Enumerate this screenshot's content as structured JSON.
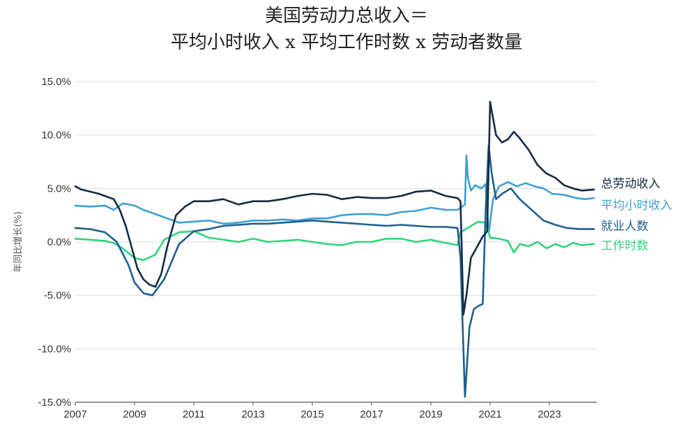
{
  "chart_data": {
    "type": "line",
    "title_line1": "美国劳动力总收入＝",
    "title_line2": "平均小时收入 x 平均工作时数 x 劳动者数量",
    "ylabel": "年同比增长(%)",
    "xlabel": "",
    "ylim": [
      -15,
      15
    ],
    "xlim": [
      2007,
      2024.6
    ],
    "y_ticks": [
      15,
      10,
      5,
      0,
      -5,
      -10,
      -15
    ],
    "y_tick_labels": [
      "15.0%",
      "10.0%",
      "5.0%",
      "0.0%",
      "-5.0%",
      "-10.0%",
      "-15.0%"
    ],
    "x_ticks": [
      2007,
      2009,
      2011,
      2013,
      2015,
      2017,
      2019,
      2021,
      2023
    ],
    "x_tick_labels": [
      "2007",
      "2009",
      "2011",
      "2013",
      "2015",
      "2017",
      "2019",
      "2021",
      "2023"
    ],
    "grid": true,
    "series": [
      {
        "name": "平均小时收入",
        "color": "#3f9fd1",
        "x": [
          2007,
          2007.5,
          2008,
          2008.3,
          2008.6,
          2009,
          2009.3,
          2009.7,
          2010,
          2010.5,
          2011,
          2011.5,
          2012,
          2012.5,
          2013,
          2013.5,
          2014,
          2014.5,
          2015,
          2015.5,
          2016,
          2016.5,
          2017,
          2017.5,
          2018,
          2018.5,
          2019,
          2019.5,
          2019.9,
          2020.15,
          2020.2,
          2020.25,
          2020.35,
          2020.5,
          2020.7,
          2020.85,
          2020.95,
          2021.1,
          2021.3,
          2021.6,
          2021.9,
          2022.2,
          2022.5,
          2022.8,
          2023.1,
          2023.5,
          2023.9,
          2024.2,
          2024.5
        ],
        "y": [
          3.4,
          3.3,
          3.4,
          3.0,
          3.6,
          3.4,
          3.0,
          2.6,
          2.3,
          1.8,
          1.9,
          2.0,
          1.7,
          1.8,
          2.0,
          2.0,
          2.1,
          2.0,
          2.2,
          2.2,
          2.5,
          2.6,
          2.6,
          2.5,
          2.8,
          2.9,
          3.2,
          3.0,
          3.0,
          3.5,
          8.1,
          6.0,
          4.8,
          5.3,
          5.0,
          5.4,
          0.8,
          4.0,
          5.2,
          5.6,
          5.2,
          5.5,
          5.2,
          5.0,
          4.5,
          4.4,
          4.1,
          4.0,
          4.1
        ]
      },
      {
        "name": "工作时数",
        "color": "#2fd47a",
        "x": [
          2007,
          2007.5,
          2008,
          2008.3,
          2008.6,
          2009,
          2009.3,
          2009.7,
          2010,
          2010.5,
          2011,
          2011.5,
          2012,
          2012.5,
          2013,
          2013.5,
          2014,
          2014.5,
          2015,
          2015.5,
          2016,
          2016.5,
          2017,
          2017.5,
          2018,
          2018.5,
          2019,
          2019.5,
          2019.9,
          2020.0,
          2020.3,
          2020.6,
          2020.85,
          2021.0,
          2021.3,
          2021.6,
          2021.8,
          2022.0,
          2022.3,
          2022.6,
          2022.9,
          2023.2,
          2023.5,
          2023.8,
          2024.1,
          2024.5
        ],
        "y": [
          0.3,
          0.2,
          0.1,
          -0.1,
          -0.6,
          -1.5,
          -1.7,
          -1.2,
          0.2,
          0.9,
          1.0,
          0.4,
          0.2,
          0.0,
          0.3,
          0.0,
          0.1,
          0.2,
          0.0,
          -0.2,
          -0.3,
          0.0,
          0.0,
          0.3,
          0.3,
          0.0,
          0.2,
          -0.1,
          -0.3,
          0.9,
          1.4,
          1.9,
          1.8,
          0.4,
          0.3,
          0.1,
          -1.0,
          -0.2,
          -0.4,
          0.0,
          -0.6,
          -0.2,
          -0.5,
          -0.1,
          -0.3,
          -0.2
        ]
      },
      {
        "name": "就业人数",
        "color": "#1f5f8f",
        "x": [
          2007,
          2007.5,
          2008,
          2008.4,
          2008.8,
          2009,
          2009.3,
          2009.6,
          2010,
          2010.5,
          2011,
          2011.5,
          2012,
          2012.5,
          2013,
          2013.5,
          2014,
          2014.5,
          2015,
          2015.5,
          2016,
          2016.5,
          2017,
          2017.5,
          2018,
          2018.5,
          2019,
          2019.5,
          2019.9,
          2020.0,
          2020.15,
          2020.3,
          2020.45,
          2020.6,
          2020.75,
          2020.85,
          2020.95,
          2021.05,
          2021.2,
          2021.4,
          2021.7,
          2022.0,
          2022.4,
          2022.8,
          2023.2,
          2023.6,
          2024.0,
          2024.5
        ],
        "y": [
          1.3,
          1.2,
          0.9,
          0.0,
          -2.2,
          -3.8,
          -4.8,
          -5.0,
          -3.5,
          -0.2,
          1.0,
          1.2,
          1.5,
          1.6,
          1.7,
          1.7,
          1.8,
          1.9,
          2.0,
          1.9,
          1.8,
          1.7,
          1.6,
          1.5,
          1.6,
          1.5,
          1.4,
          1.4,
          1.3,
          -1.5,
          -14.5,
          -8.0,
          -6.3,
          -6.0,
          -5.8,
          3.0,
          9.0,
          6.5,
          4.0,
          4.5,
          5.0,
          4.0,
          3.0,
          2.0,
          1.6,
          1.3,
          1.2,
          1.2
        ]
      },
      {
        "name": "总劳动收入",
        "color": "#142a45",
        "x": [
          2007,
          2007.2,
          2007.5,
          2007.8,
          2008,
          2008.3,
          2008.5,
          2008.7,
          2008.9,
          2009.1,
          2009.3,
          2009.5,
          2009.7,
          2009.9,
          2010.1,
          2010.4,
          2010.7,
          2011,
          2011.5,
          2012,
          2012.5,
          2013,
          2013.5,
          2014,
          2014.5,
          2015,
          2015.5,
          2016,
          2016.5,
          2017,
          2017.5,
          2018,
          2018.5,
          2019,
          2019.5,
          2019.9,
          2020.0,
          2020.1,
          2020.2,
          2020.35,
          2020.55,
          2020.75,
          2020.9,
          2021.0,
          2021.2,
          2021.4,
          2021.6,
          2021.8,
          2022.0,
          2022.3,
          2022.6,
          2022.9,
          2023.2,
          2023.5,
          2023.8,
          2024.1,
          2024.5
        ],
        "y": [
          5.2,
          4.9,
          4.7,
          4.5,
          4.3,
          4.0,
          3.0,
          1.5,
          -0.5,
          -2.5,
          -3.5,
          -4.0,
          -4.2,
          -3.0,
          -0.5,
          2.5,
          3.3,
          3.8,
          3.8,
          4.0,
          3.5,
          3.8,
          3.8,
          4.0,
          4.3,
          4.5,
          4.4,
          4.0,
          4.2,
          4.1,
          4.1,
          4.3,
          4.7,
          4.8,
          4.3,
          4.1,
          3.8,
          -6.8,
          -5.0,
          -1.5,
          -0.5,
          0.5,
          1.0,
          13.1,
          10.0,
          9.3,
          9.6,
          10.3,
          9.7,
          8.6,
          7.2,
          6.4,
          6.0,
          5.3,
          5.0,
          4.8,
          4.9
        ]
      }
    ],
    "legend": {
      "placement": "right",
      "entries": [
        {
          "label": "总劳动收入",
          "color": "#142a45"
        },
        {
          "label": "平均小时收入",
          "color": "#3f9fd1"
        },
        {
          "label": "就业人数",
          "color": "#1f5f8f"
        },
        {
          "label": "工作时数",
          "color": "#2fd47a"
        }
      ]
    }
  }
}
